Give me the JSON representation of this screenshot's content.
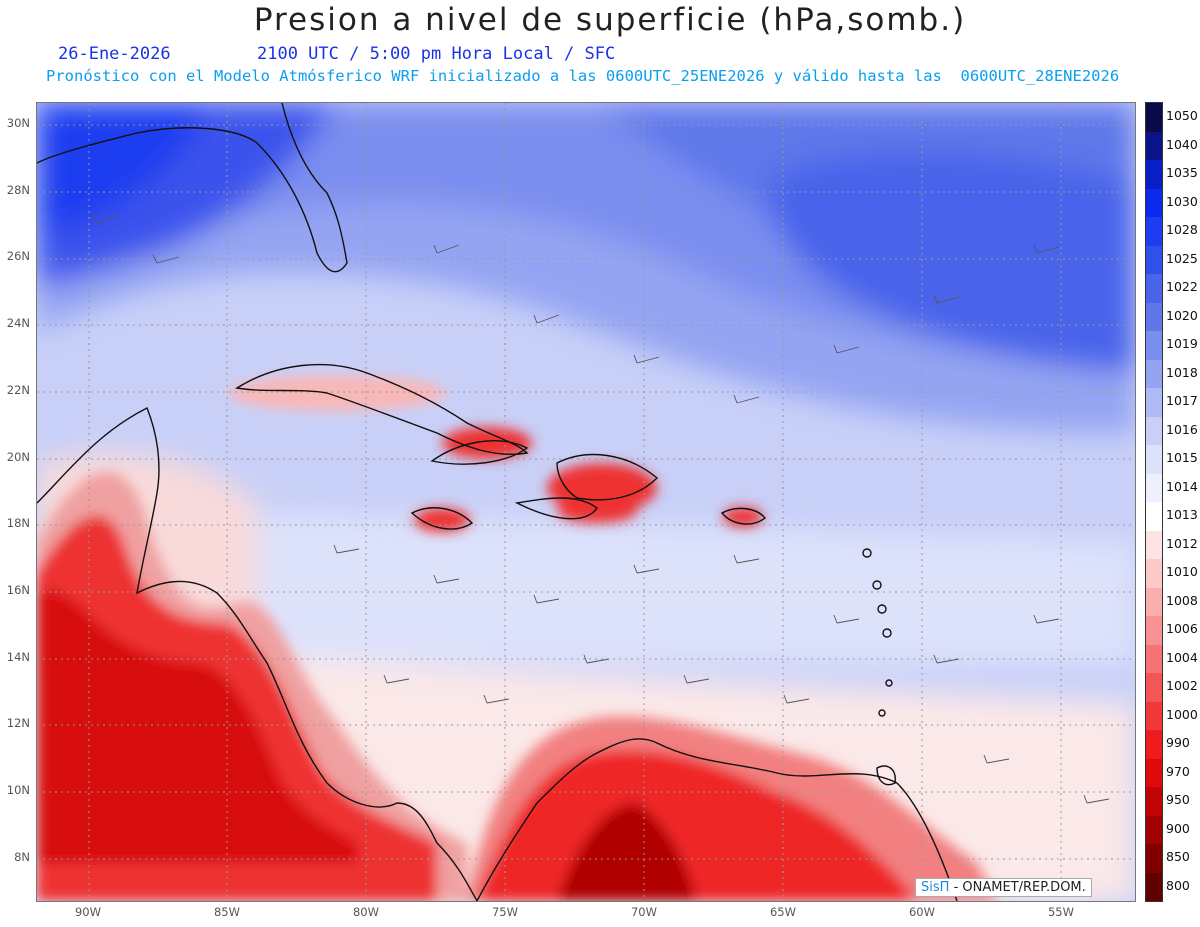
{
  "title": "Presion a nivel de superficie (hPa,somb.)",
  "date": "26-Ene-2026",
  "time_info": "2100 UTC / 5:00 pm Hora Local / SFC",
  "subtitle": "Pronóstico con el Modelo Atmósferico WRF inicializado a las 0600UTC_25ENE2026 y válido hasta las  0600UTC_28ENE2026",
  "credit": {
    "logo": "SisΠ",
    "text": "- ONAMET/REP.DOM."
  },
  "lat_labels": [
    "30N",
    "28N",
    "26N",
    "24N",
    "22N",
    "20N",
    "18N",
    "16N",
    "14N",
    "12N",
    "10N",
    "8N"
  ],
  "lon_labels": [
    "90W",
    "85W",
    "80W",
    "75W",
    "70W",
    "65W",
    "60W",
    "55W"
  ],
  "colorbar": {
    "levels": [
      "1050",
      "1040",
      "1035",
      "1030",
      "1028",
      "1025",
      "1022",
      "1020",
      "1019",
      "1018",
      "1017",
      "1016",
      "1015",
      "1014",
      "1013",
      "1012",
      "1010",
      "1008",
      "1006",
      "1004",
      "1002",
      "1000",
      "990",
      "970",
      "950",
      "900",
      "850",
      "800"
    ],
    "colors": [
      "#0a0a4a",
      "#0a1488",
      "#0a1ec8",
      "#0a2aee",
      "#1e3cf0",
      "#3050ec",
      "#4a64ea",
      "#5e78ea",
      "#7a8ef0",
      "#94a4f2",
      "#aebaf5",
      "#c8d0f8",
      "#dde2fb",
      "#eef0fd",
      "#ffffff",
      "#fde4e4",
      "#fccaca",
      "#faaeae",
      "#f89292",
      "#f67474",
      "#f45656",
      "#f23838",
      "#ee1c1c",
      "#e00a0a",
      "#c00404",
      "#a00202",
      "#800000",
      "#600000"
    ]
  },
  "regions": [
    {
      "name": "gulf-high",
      "color": "#2a40ea"
    },
    {
      "name": "atlantic-high",
      "color": "#4a5ee8"
    },
    {
      "name": "caribbean-mid",
      "color": "#b4bef4"
    },
    {
      "name": "southern-low",
      "color": "#fbe8e8"
    },
    {
      "name": "land-low",
      "color": "#ee2a2a"
    }
  ]
}
